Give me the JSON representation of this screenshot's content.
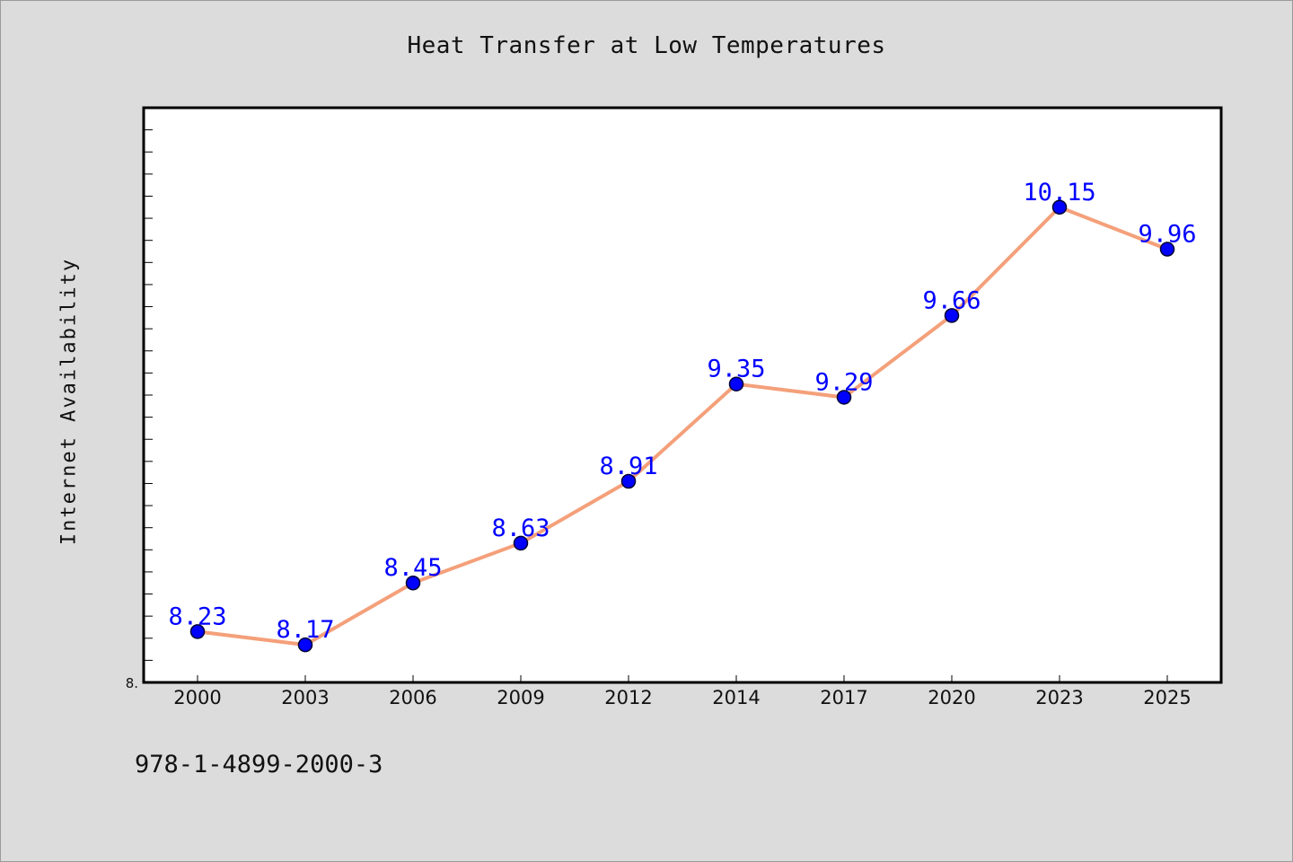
{
  "chart_data": {
    "type": "line",
    "title": "Heat Transfer at Low Temperatures",
    "xlabel": "",
    "ylabel": "Internet Availability",
    "categories": [
      "2000",
      "2003",
      "2006",
      "2009",
      "2012",
      "2014",
      "2017",
      "2020",
      "2023",
      "2025"
    ],
    "series": [
      {
        "values": [
          8.23,
          8.17,
          8.45,
          8.63,
          8.91,
          9.35,
          9.29,
          9.66,
          10.15,
          9.96
        ]
      }
    ],
    "data_labels": [
      "8.23",
      "8.17",
      "8.45",
      "8.63",
      "8.91",
      "9.35",
      "9.29",
      "9.66",
      "10.15",
      "9.96"
    ],
    "y_tick_labels": [
      "8."
    ],
    "ylim": [
      8.0,
      10.6
    ],
    "grid": false,
    "legend": "none",
    "colors": {
      "line": "#f4a07a",
      "marker": "#0000ff",
      "marker_edge": "#000033",
      "data_label": "#0000ff",
      "plot_bg": "#ffffff",
      "figure_bg": "#dcdcdc"
    }
  },
  "footer": {
    "code": "978-1-4899-2000-3"
  }
}
